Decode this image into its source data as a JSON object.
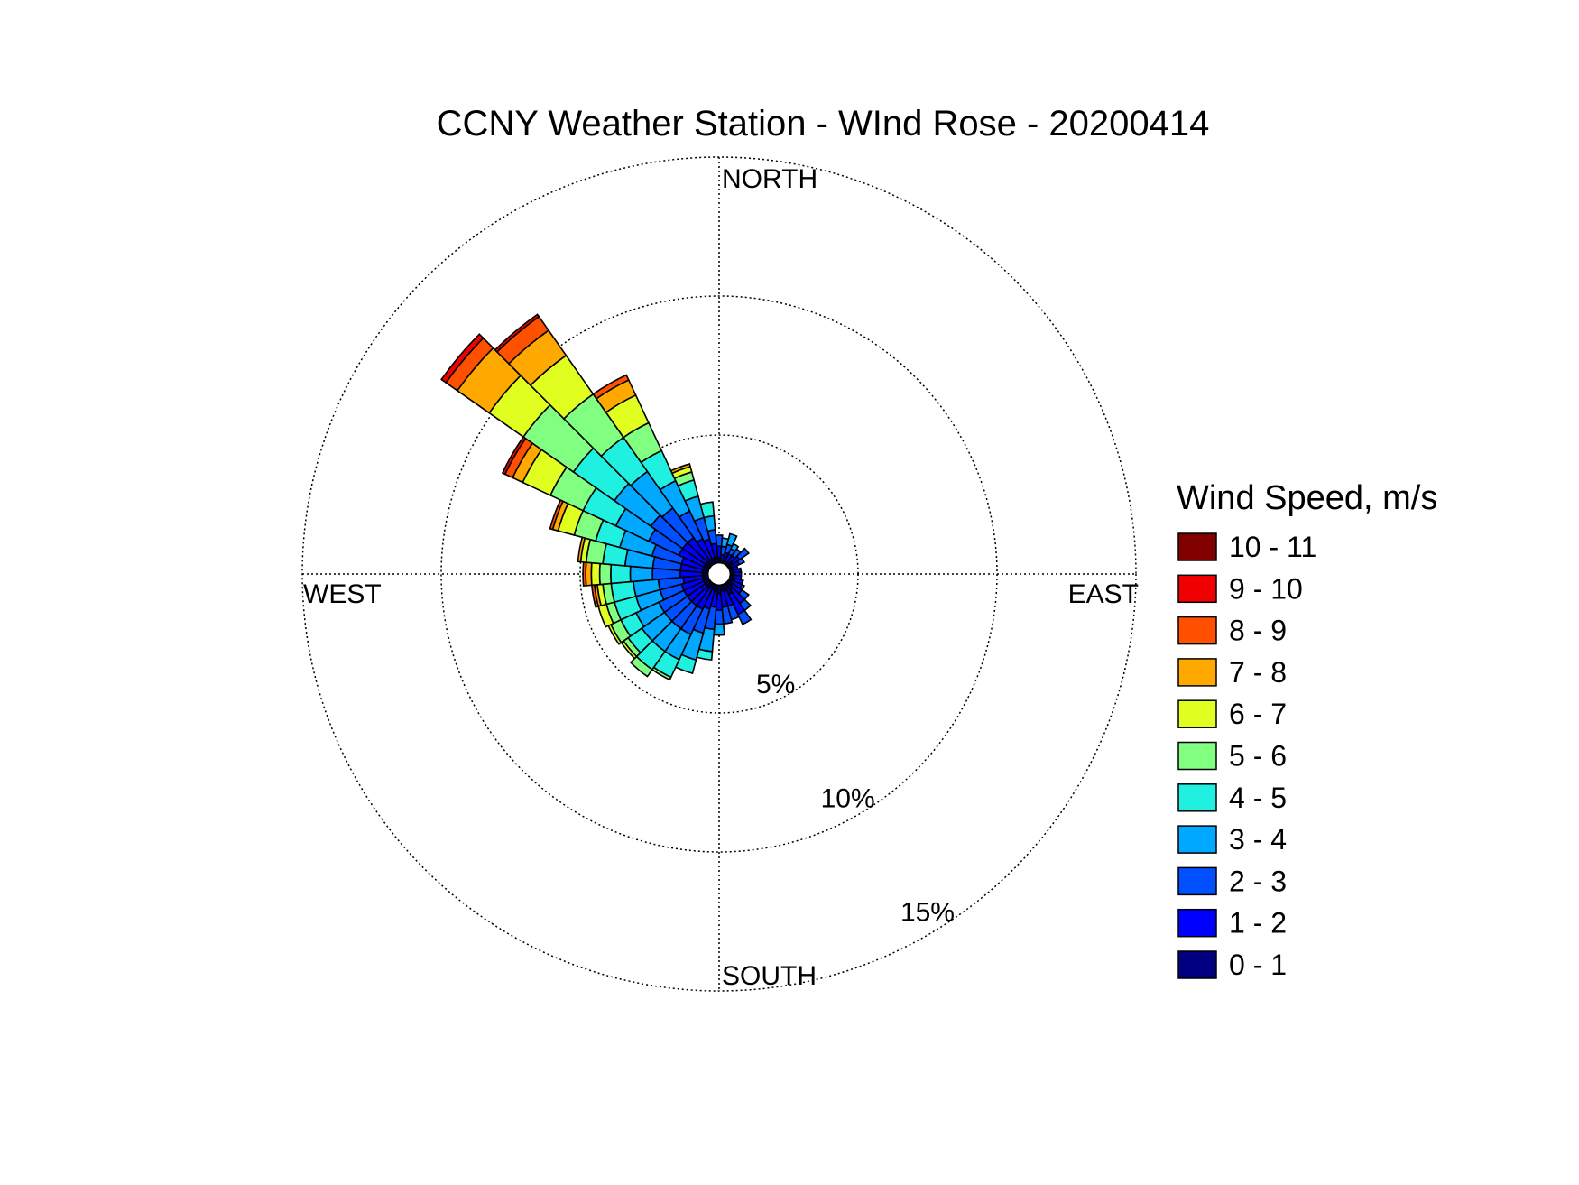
{
  "chart_data": {
    "type": "wind-rose",
    "title": "CCNY Weather Station - WInd Rose - 20200414",
    "directions": {
      "north": "NORTH",
      "south": "SOUTH",
      "east": "EAST",
      "west": "WEST"
    },
    "ring_percents": [
      5,
      10,
      15
    ],
    "ring_labels": [
      "5%",
      "10%",
      "15%"
    ],
    "rmax_percent": 15,
    "legend_title": "Wind Speed, m/s",
    "speed_bins": [
      {
        "label": "0 - 1",
        "color": "#000080"
      },
      {
        "label": "1 - 2",
        "color": "#0000ff"
      },
      {
        "label": "2 - 3",
        "color": "#0050ff"
      },
      {
        "label": "3 - 4",
        "color": "#00a8ff"
      },
      {
        "label": "4 - 5",
        "color": "#20f0e0"
      },
      {
        "label": "5 - 6",
        "color": "#80ff80"
      },
      {
        "label": "6 - 7",
        "color": "#e0ff20"
      },
      {
        "label": "7 - 8",
        "color": "#ffa800"
      },
      {
        "label": "8 - 9",
        "color": "#ff5000"
      },
      {
        "label": "9 - 10",
        "color": "#f00000"
      },
      {
        "label": "10 - 11",
        "color": "#800000"
      }
    ],
    "sector_width_deg": 10,
    "calm_radius_percent": 0.4,
    "sectors": [
      {
        "direction_deg": 0,
        "cumulative": [
          0.6,
          1.0,
          1.4
        ]
      },
      {
        "direction_deg": 10,
        "cumulative": [
          0.5,
          0.7,
          1.0,
          1.3
        ]
      },
      {
        "direction_deg": 20,
        "cumulative": [
          0.5,
          0.8,
          1.1,
          1.5
        ]
      },
      {
        "direction_deg": 30,
        "cumulative": [
          0.5,
          0.8,
          1.0,
          1.2
        ]
      },
      {
        "direction_deg": 40,
        "cumulative": [
          0.5,
          0.8,
          1.1
        ]
      },
      {
        "direction_deg": 50,
        "cumulative": [
          0.6,
          0.9,
          1.3
        ]
      },
      {
        "direction_deg": 60,
        "cumulative": [
          0.5,
          0.8,
          1.0
        ]
      },
      {
        "direction_deg": 70,
        "cumulative": [
          0.5,
          0.7
        ]
      },
      {
        "direction_deg": 80,
        "cumulative": [
          0.5,
          0.8
        ]
      },
      {
        "direction_deg": 90,
        "cumulative": [
          0.5,
          0.8
        ]
      },
      {
        "direction_deg": 100,
        "cumulative": [
          0.5,
          0.8
        ]
      },
      {
        "direction_deg": 110,
        "cumulative": [
          0.6,
          0.9
        ]
      },
      {
        "direction_deg": 120,
        "cumulative": [
          0.5,
          0.9,
          1.0
        ]
      },
      {
        "direction_deg": 130,
        "cumulative": [
          0.6,
          1.0,
          1.3
        ]
      },
      {
        "direction_deg": 140,
        "cumulative": [
          0.7,
          1.3,
          1.6
        ]
      },
      {
        "direction_deg": 150,
        "cumulative": [
          0.8,
          1.6,
          2.0
        ]
      },
      {
        "direction_deg": 160,
        "cumulative": [
          0.6,
          1.2,
          1.7
        ]
      },
      {
        "direction_deg": 170,
        "cumulative": [
          0.6,
          1.2,
          1.8
        ]
      },
      {
        "direction_deg": 180,
        "cumulative": [
          0.7,
          1.3,
          1.8,
          2.2
        ]
      },
      {
        "direction_deg": 190,
        "cumulative": [
          0.6,
          1.2,
          2.0,
          2.8,
          3.1
        ]
      },
      {
        "direction_deg": 200,
        "cumulative": [
          0.6,
          1.3,
          2.2,
          3.2,
          3.7
        ]
      },
      {
        "direction_deg": 210,
        "cumulative": [
          0.6,
          1.4,
          2.4,
          3.4,
          4.1,
          4.2
        ]
      },
      {
        "direction_deg": 220,
        "cumulative": [
          0.6,
          1.4,
          2.4,
          3.4,
          4.2,
          4.5
        ]
      },
      {
        "direction_deg": 230,
        "cumulative": [
          0.6,
          1.4,
          2.4,
          3.4,
          4.0,
          4.2,
          4.3
        ]
      },
      {
        "direction_deg": 240,
        "cumulative": [
          0.6,
          1.4,
          2.4,
          3.3,
          3.9,
          4.3,
          4.4
        ]
      },
      {
        "direction_deg": 250,
        "cumulative": [
          0.6,
          1.4,
          2.2,
          3.1,
          3.9,
          4.2,
          4.5
        ]
      },
      {
        "direction_deg": 260,
        "cumulative": [
          0.6,
          1.3,
          2.2,
          3.1,
          3.9,
          4.2,
          4.4,
          4.5,
          4.6
        ]
      },
      {
        "direction_deg": 270,
        "cumulative": [
          0.6,
          1.4,
          2.4,
          3.2,
          3.9,
          4.3,
          4.6,
          4.8,
          4.9
        ]
      },
      {
        "direction_deg": 280,
        "cumulative": [
          0.6,
          1.4,
          2.4,
          3.4,
          4.2,
          4.8,
          5.0,
          5.1
        ]
      },
      {
        "direction_deg": 290,
        "cumulative": [
          0.6,
          1.4,
          2.5,
          3.7,
          4.6,
          5.4,
          6.0,
          6.2,
          6.3
        ]
      },
      {
        "direction_deg": 300,
        "cumulative": [
          0.6,
          1.6,
          2.8,
          4.1,
          5.4,
          6.7,
          7.8,
          8.2,
          8.5,
          8.6
        ]
      },
      {
        "direction_deg": 310,
        "cumulative": [
          0.6,
          1.6,
          3.0,
          4.6,
          6.4,
          8.6,
          10.1,
          11.5,
          12.0,
          12.2
        ]
      },
      {
        "direction_deg": 320,
        "cumulative": [
          0.6,
          1.6,
          2.9,
          4.5,
          6.0,
          7.9,
          9.6,
          10.7,
          11.3,
          11.4
        ]
      },
      {
        "direction_deg": 330,
        "cumulative": [
          0.6,
          1.4,
          2.5,
          3.7,
          4.9,
          6.0,
          7.1,
          7.7,
          7.9
        ]
      },
      {
        "direction_deg": 340,
        "cumulative": [
          0.6,
          1.3,
          2.1,
          2.9,
          3.5,
          3.8,
          4.0,
          4.1
        ]
      },
      {
        "direction_deg": 350,
        "cumulative": [
          0.6,
          1.1,
          1.6,
          2.1,
          2.6
        ]
      }
    ]
  }
}
